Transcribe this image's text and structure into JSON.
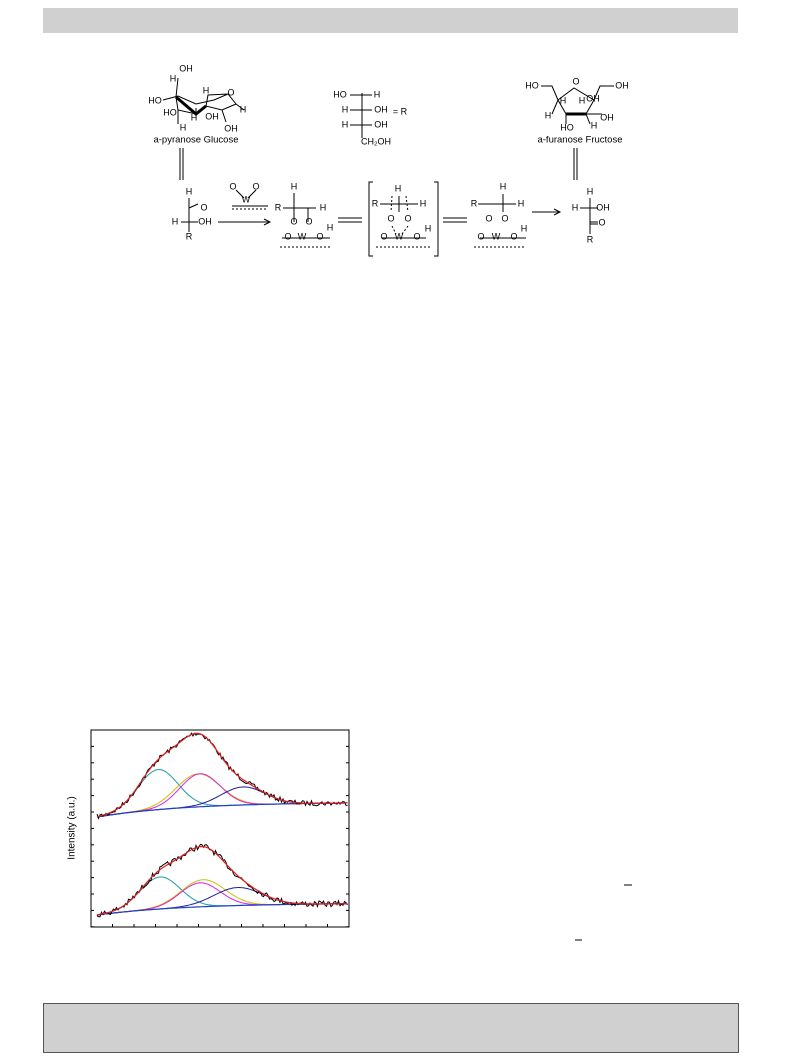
{
  "header": {},
  "scheme": {
    "glucose_label": "a-pyranose Glucose",
    "fructose_label": "a-furanose Fructose",
    "labels": [
      "OH",
      "H",
      "HO",
      "H",
      "O",
      "H",
      "HO",
      "H",
      "OH",
      "H",
      "OH",
      "HO",
      "H",
      "H",
      "OH",
      "H",
      "OH",
      "CH₂OH",
      "= R",
      "HO",
      "O",
      "OH",
      "H",
      "H",
      "OH",
      "H",
      "OH",
      "HO",
      "H",
      "H",
      "O",
      "H",
      "OH",
      "R",
      "O",
      "O",
      "W",
      "R",
      "H",
      "H",
      "O",
      "O",
      "O",
      "W",
      "O",
      "H",
      "R",
      "H",
      "H",
      "O",
      "O",
      "O",
      "W",
      "O",
      "H",
      "R",
      "H",
      "H",
      "O",
      "O",
      "O",
      "W",
      "O",
      "H",
      "H",
      "H",
      "OH",
      "O",
      "R"
    ]
  },
  "figure": {
    "y_label": "Intensity (a.u.)"
  }
}
